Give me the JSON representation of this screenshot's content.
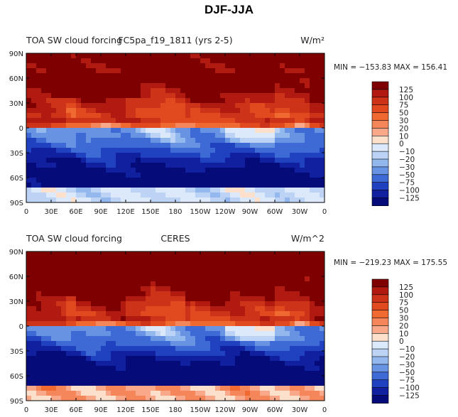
{
  "figure": {
    "title": "DJF-JJA"
  },
  "chart_data": [
    {
      "type": "heatmap",
      "title_left": "TOA SW cloud forcing",
      "title_center": "FC5pa_f19_1811 (yrs 2-5)",
      "units": "W/m²",
      "stats": "MIN = −153.83  MAX = 156.41",
      "min": -153.83,
      "max": 156.41,
      "xlim": [
        0,
        360
      ],
      "ylim": [
        -90,
        90
      ],
      "x_ticks": [
        "0",
        "30E",
        "60E",
        "90E",
        "120E",
        "150E",
        "180",
        "150W",
        "120W",
        "90W",
        "60W",
        "30W",
        "0"
      ],
      "y_ticks": [
        "90N",
        "60N",
        "30N",
        "0",
        "30S",
        "60S",
        "90S"
      ]
    },
    {
      "type": "heatmap",
      "title_left": "TOA SW cloud forcing",
      "title_center": "CERES",
      "units": "W/m^2",
      "stats": "MIN = −219.23  MAX = 175.55",
      "min": -219.23,
      "max": 175.55,
      "xlim": [
        0,
        360
      ],
      "ylim": [
        -90,
        90
      ],
      "x_ticks": [
        "0",
        "30E",
        "60E",
        "90E",
        "120E",
        "150E",
        "180",
        "150W",
        "120W",
        "90W",
        "60W",
        "30W",
        "0"
      ],
      "y_ticks": [
        "90N",
        "60N",
        "30N",
        "0",
        "30S",
        "60S",
        "90S"
      ]
    }
  ],
  "colorbar": {
    "labels": [
      "125",
      "100",
      "75",
      "50",
      "30",
      "20",
      "10",
      "0",
      "−10",
      "−20",
      "−30",
      "−50",
      "−75",
      "−100",
      "−125"
    ],
    "colors": [
      "#7f0000",
      "#b01a10",
      "#cc3318",
      "#e04a1e",
      "#ef6930",
      "#f5865a",
      "#f9a98a",
      "#fde0cc",
      "#dbe9fa",
      "#bcd3f5",
      "#92b8ee",
      "#6893e2",
      "#3e6ad6",
      "#2142c0",
      "#10209e",
      "#060b7a"
    ]
  }
}
